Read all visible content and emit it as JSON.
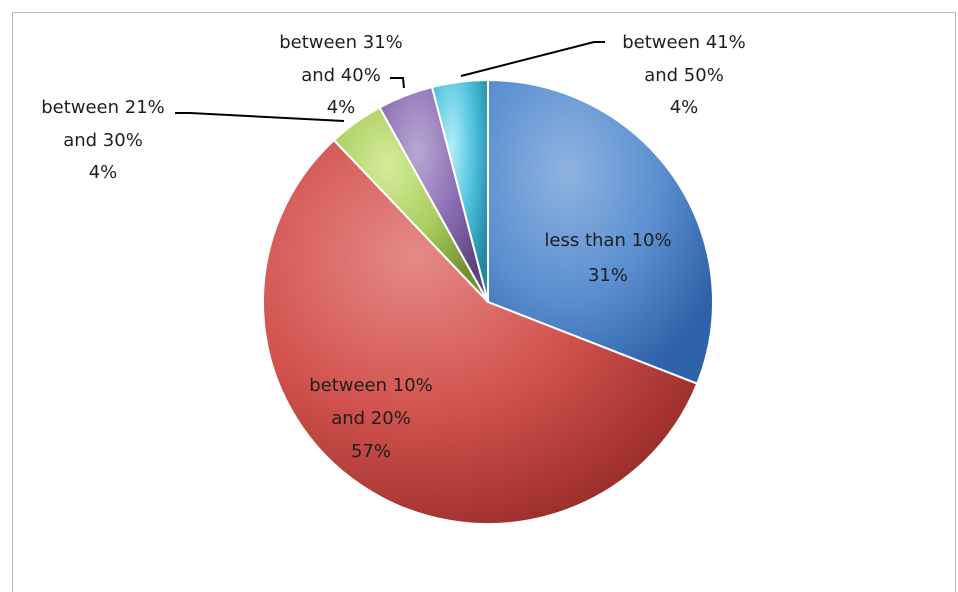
{
  "chart_data": {
    "type": "pie",
    "slices": [
      {
        "category": "less than 10%",
        "value": 31,
        "label_value": "31%",
        "color": "#4f81bd"
      },
      {
        "category": "between 10% and 20%",
        "value": 57,
        "label_value": "57%",
        "color": "#c0504d"
      },
      {
        "category": "between 21% and 30%",
        "value": 4,
        "label_value": "4%",
        "color": "#9bbb59"
      },
      {
        "category": "between 31% and 40%",
        "value": 4,
        "label_value": "4%",
        "color": "#8064a2"
      },
      {
        "category": "between 41% and 50%",
        "value": 4,
        "label_value": "4%",
        "color": "#4bacc6"
      }
    ],
    "labels": {
      "less_than_10": {
        "line1": "less than 10%",
        "line2": "31%"
      },
      "between_10_20": {
        "line1": "between 10%",
        "line2": "and 20%",
        "line3": "57%"
      },
      "between_21_30": {
        "line1": "between 21%",
        "line2": "and 30%",
        "line3": "4%"
      },
      "between_31_40": {
        "line1": "between 31%",
        "line2": "and 40%",
        "line3": "4%"
      },
      "between_41_50": {
        "line1": "between 41%",
        "line2": "and 50%",
        "line3": "4%"
      }
    },
    "start_angle_deg": 0,
    "direction": "clockwise"
  }
}
